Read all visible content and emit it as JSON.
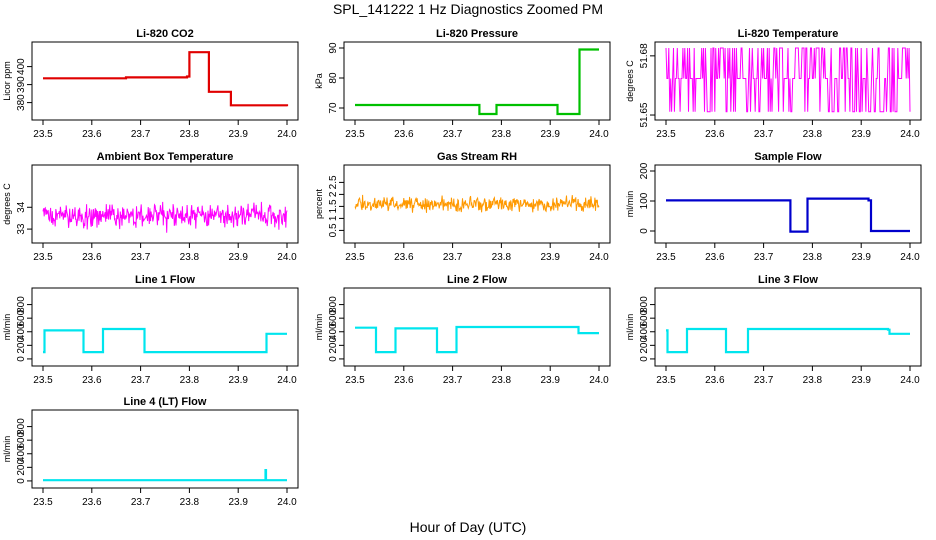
{
  "figure": {
    "title": "SPL_141222  1 Hz Diagnostics Zoomed PM",
    "xlabel": "Hour of Day (UTC)"
  },
  "chart_data": [
    {
      "type": "line",
      "title": "Li-820 CO2",
      "ylabel": "Licor ppm",
      "color": "#e00000",
      "xlim": [
        23.5,
        24.0
      ],
      "ylim": [
        372,
        412
      ],
      "xticks": [
        "23.5",
        "23.6",
        "23.7",
        "23.8",
        "23.9",
        "24.0"
      ],
      "yticks": [
        380,
        390,
        400
      ],
      "series": [
        {
          "style": "step",
          "x": [
            23.5,
            23.67,
            23.795,
            23.8,
            23.835,
            23.84,
            23.88,
            23.885,
            24.0
          ],
          "y": [
            393.5,
            394,
            394.5,
            408,
            408,
            386,
            386,
            378.5,
            378
          ]
        }
      ]
    },
    {
      "type": "line",
      "title": "Li-820 Pressure",
      "ylabel": "kPa",
      "color": "#00c000",
      "xlim": [
        23.5,
        24.0
      ],
      "ylim": [
        67,
        91
      ],
      "xticks": [
        "23.5",
        "23.6",
        "23.7",
        "23.8",
        "23.9",
        "24.0"
      ],
      "yticks": [
        70,
        80,
        90
      ],
      "series": [
        {
          "style": "step",
          "x": [
            23.5,
            23.75,
            23.755,
            23.785,
            23.79,
            23.91,
            23.915,
            23.955,
            23.96,
            24.0
          ],
          "y": [
            71,
            71,
            68,
            68,
            71,
            71,
            68,
            68,
            89.5,
            89.5
          ]
        }
      ]
    },
    {
      "type": "line",
      "title": "Li-820 Temperature",
      "ylabel": "degrees C",
      "color": "#ff00ff",
      "xlim": [
        23.5,
        24.0
      ],
      "ylim": [
        51.649,
        51.6855
      ],
      "xticks": [
        "23.5",
        "23.6",
        "23.7",
        "23.8",
        "23.9",
        "24.0"
      ],
      "yticks": [
        51.65,
        51.68
      ],
      "series": [
        {
          "style": "noise",
          "levels": [
            51.6517,
            51.6685,
            51.684
          ]
        }
      ]
    },
    {
      "type": "line",
      "title": "Ambient Box Temperature",
      "ylabel": "degrees C",
      "color": "#ff00ff",
      "xlim": [
        23.5,
        24.0
      ],
      "ylim": [
        32.5,
        35.8
      ],
      "xticks": [
        "23.5",
        "23.6",
        "23.7",
        "23.8",
        "23.9",
        "24.0"
      ],
      "yticks": [
        33.0,
        34.0
      ],
      "series": [
        {
          "style": "noise",
          "center": 33.6,
          "spread": 0.8
        }
      ]
    },
    {
      "type": "scatter",
      "title": "Gas Stream RH",
      "ylabel": "percent",
      "color": "#ff9900",
      "xlim": [
        23.5,
        24.0
      ],
      "ylim": [
        0.1,
        3.1
      ],
      "xticks": [
        "23.5",
        "23.6",
        "23.7",
        "23.8",
        "23.9",
        "24.0"
      ],
      "yticks": [
        0.5,
        1.0,
        1.5,
        2.0,
        2.5
      ],
      "series": [
        {
          "style": "noise",
          "center": 1.6,
          "spread": 0.45
        }
      ]
    },
    {
      "type": "line",
      "title": "Sample Flow",
      "ylabel": "ml/min",
      "color": "#0000cc",
      "xlim": [
        23.5,
        24.0
      ],
      "ylim": [
        -30,
        210
      ],
      "xticks": [
        "23.5",
        "23.6",
        "23.7",
        "23.8",
        "23.9",
        "24.0"
      ],
      "yticks": [
        0,
        100,
        200
      ],
      "series": [
        {
          "style": "step",
          "x": [
            23.5,
            23.75,
            23.755,
            23.785,
            23.79,
            23.915,
            23.92,
            24.0
          ],
          "y": [
            102,
            102,
            -2,
            -2,
            108,
            102,
            0,
            0
          ]
        }
      ]
    },
    {
      "type": "line",
      "title": "Line 1 Flow",
      "ylabel": "ml/min",
      "color": "#00e5ee",
      "xlim": [
        23.5,
        24.0
      ],
      "ylim": [
        -60,
        1000
      ],
      "xticks": [
        "23.5",
        "23.6",
        "23.7",
        "23.8",
        "23.9",
        "24.0"
      ],
      "yticks": [
        0,
        200,
        400,
        600,
        800
      ],
      "series": [
        {
          "style": "step",
          "x": [
            23.5,
            23.503,
            23.58,
            23.583,
            23.62,
            23.623,
            23.705,
            23.708,
            23.955,
            23.958,
            24.0
          ],
          "y": [
            100,
            420,
            420,
            100,
            100,
            440,
            440,
            100,
            100,
            370,
            370
          ]
        }
      ]
    },
    {
      "type": "line",
      "title": "Line 2 Flow",
      "ylabel": "ml/min",
      "color": "#00e5ee",
      "xlim": [
        23.5,
        24.0
      ],
      "ylim": [
        -60,
        1000
      ],
      "xticks": [
        "23.5",
        "23.6",
        "23.7",
        "23.8",
        "23.9",
        "24.0"
      ],
      "yticks": [
        0,
        200,
        400,
        600,
        800
      ],
      "series": [
        {
          "style": "step",
          "x": [
            23.5,
            23.54,
            23.543,
            23.58,
            23.583,
            23.665,
            23.668,
            23.705,
            23.708,
            23.955,
            23.958,
            24.0
          ],
          "y": [
            460,
            460,
            100,
            100,
            450,
            450,
            100,
            100,
            470,
            470,
            380,
            380
          ]
        }
      ]
    },
    {
      "type": "line",
      "title": "Line 3 Flow",
      "ylabel": "ml/min",
      "color": "#00e5ee",
      "xlim": [
        23.5,
        24.0
      ],
      "ylim": [
        -60,
        1000
      ],
      "xticks": [
        "23.5",
        "23.6",
        "23.7",
        "23.8",
        "23.9",
        "24.0"
      ],
      "yticks": [
        0,
        200,
        400,
        600,
        800
      ],
      "series": [
        {
          "style": "step",
          "x": [
            23.5,
            23.503,
            23.54,
            23.543,
            23.62,
            23.623,
            23.665,
            23.668,
            23.955,
            23.958,
            24.0
          ],
          "y": [
            420,
            100,
            100,
            440,
            440,
            100,
            100,
            440,
            430,
            370,
            370
          ]
        }
      ]
    },
    {
      "type": "line",
      "title": "Line 4 (LT) Flow",
      "ylabel": "ml/min",
      "color": "#00e5ee",
      "xlim": [
        23.5,
        24.0
      ],
      "ylim": [
        -60,
        1000
      ],
      "xticks": [
        "23.5",
        "23.6",
        "23.7",
        "23.8",
        "23.9",
        "24.0"
      ],
      "yticks": [
        0,
        200,
        400,
        600,
        800
      ],
      "series": [
        {
          "style": "step",
          "x": [
            23.5,
            23.955,
            23.956,
            23.957,
            24.0
          ],
          "y": [
            10,
            10,
            160,
            10,
            10
          ]
        }
      ]
    }
  ]
}
